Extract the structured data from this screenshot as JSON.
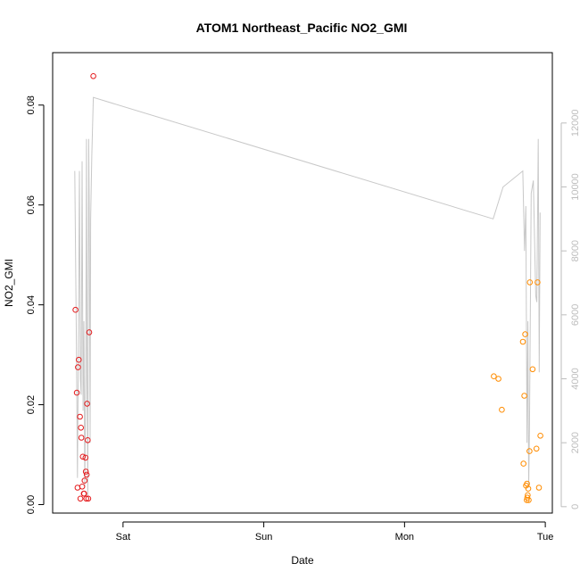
{
  "chart_data": {
    "type": "scatter",
    "title": "ATOM1 Northeast_Pacific NO2_GMI",
    "xlabel": "Date",
    "ylabel": "NO2_GMI",
    "x_ticks": [
      {
        "label": "Sat",
        "day": 1.0
      },
      {
        "label": "Sun",
        "day": 2.0
      },
      {
        "label": "Mon",
        "day": 3.0
      },
      {
        "label": "Tue",
        "day": 4.0
      }
    ],
    "xlim_day": [
      0.5,
      4.05
    ],
    "ylim": [
      -0.0017,
      0.0905
    ],
    "y_ticks": [
      0.0,
      0.02,
      0.04,
      0.06,
      0.08
    ],
    "y_tick_labels": [
      "0.00",
      "0.02",
      "0.04",
      "0.06",
      "0.08"
    ],
    "y2lim": [
      -200,
      14200
    ],
    "y2_ticks": [
      0,
      2000,
      4000,
      6000,
      8000,
      10000,
      12000
    ],
    "y2_tick_labels": [
      "0",
      "2000",
      "4000",
      "6000",
      "8000",
      "10000",
      "12000"
    ],
    "grid": false,
    "colors": {
      "series_red": "#e41a1c",
      "series_orange": "#ff8c00",
      "altitude_line": "#c8c8c8",
      "right_axis": "#bdbdbd"
    },
    "series": [
      {
        "color": "#e41a1c",
        "points": [
          [
            0.662,
            0.039
          ],
          [
            0.672,
            0.0224
          ],
          [
            0.677,
            0.0034
          ],
          [
            0.68,
            0.0275
          ],
          [
            0.686,
            0.029
          ],
          [
            0.694,
            0.0176
          ],
          [
            0.697,
            0.0012
          ],
          [
            0.701,
            0.0154
          ],
          [
            0.704,
            0.0134
          ],
          [
            0.71,
            0.0036
          ],
          [
            0.714,
            0.0096
          ],
          [
            0.721,
            0.0022
          ],
          [
            0.724,
            0.0022
          ],
          [
            0.727,
            0.0048
          ],
          [
            0.733,
            0.0094
          ],
          [
            0.736,
            0.0066
          ],
          [
            0.739,
            0.0012
          ],
          [
            0.742,
            0.006
          ],
          [
            0.745,
            0.0202
          ],
          [
            0.749,
            0.0129
          ],
          [
            0.753,
            0.0012
          ],
          [
            0.76,
            0.0345
          ],
          [
            0.789,
            0.0858
          ]
        ]
      },
      {
        "color": "#ff8c00",
        "points": [
          [
            3.634,
            0.0257
          ],
          [
            3.667,
            0.0252
          ],
          [
            3.691,
            0.019
          ],
          [
            3.841,
            0.0326
          ],
          [
            3.845,
            0.0082
          ],
          [
            3.851,
            0.0218
          ],
          [
            3.857,
            0.0341
          ],
          [
            3.863,
            0.0038
          ],
          [
            3.868,
            0.0009
          ],
          [
            3.87,
            0.0042
          ],
          [
            3.872,
            0.0014
          ],
          [
            3.875,
            0.0019
          ],
          [
            3.879,
            0.0032
          ],
          [
            3.882,
            0.0009
          ],
          [
            3.888,
            0.0107
          ],
          [
            3.89,
            0.0445
          ],
          [
            3.91,
            0.0271
          ],
          [
            3.937,
            0.0112
          ],
          [
            3.945,
            0.0445
          ],
          [
            3.955,
            0.0034
          ],
          [
            3.965,
            0.0138
          ]
        ]
      },
      {
        "color": "#c8c8c8",
        "axis": "right",
        "line": [
          [
            0.657,
            10500
          ],
          [
            0.668,
            5500
          ],
          [
            0.676,
            900
          ],
          [
            0.684,
            5500
          ],
          [
            0.69,
            10500
          ],
          [
            0.697,
            4000
          ],
          [
            0.703,
            3500
          ],
          [
            0.709,
            10800
          ],
          [
            0.716,
            3000
          ],
          [
            0.722,
            5800
          ],
          [
            0.728,
            600
          ],
          [
            0.735,
            4000
          ],
          [
            0.74,
            11500
          ],
          [
            0.745,
            4000
          ],
          [
            0.75,
            300
          ],
          [
            0.756,
            11500
          ],
          [
            0.76,
            9500
          ],
          [
            0.766,
            2000
          ],
          [
            0.77,
            9000
          ],
          [
            0.778,
            11000
          ],
          [
            0.789,
            12800
          ],
          [
            3.63,
            9000
          ],
          [
            3.7,
            10000
          ],
          [
            3.84,
            10500
          ],
          [
            3.852,
            8000
          ],
          [
            3.862,
            9400
          ],
          [
            3.87,
            2000
          ],
          [
            3.876,
            5800
          ],
          [
            3.882,
            600
          ],
          [
            3.888,
            2500
          ],
          [
            3.9,
            9800
          ],
          [
            3.915,
            10200
          ],
          [
            3.932,
            6600
          ],
          [
            3.94,
            6400
          ],
          [
            3.95,
            11500
          ],
          [
            3.957,
            4200
          ],
          [
            3.963,
            9200
          ]
        ]
      }
    ]
  }
}
